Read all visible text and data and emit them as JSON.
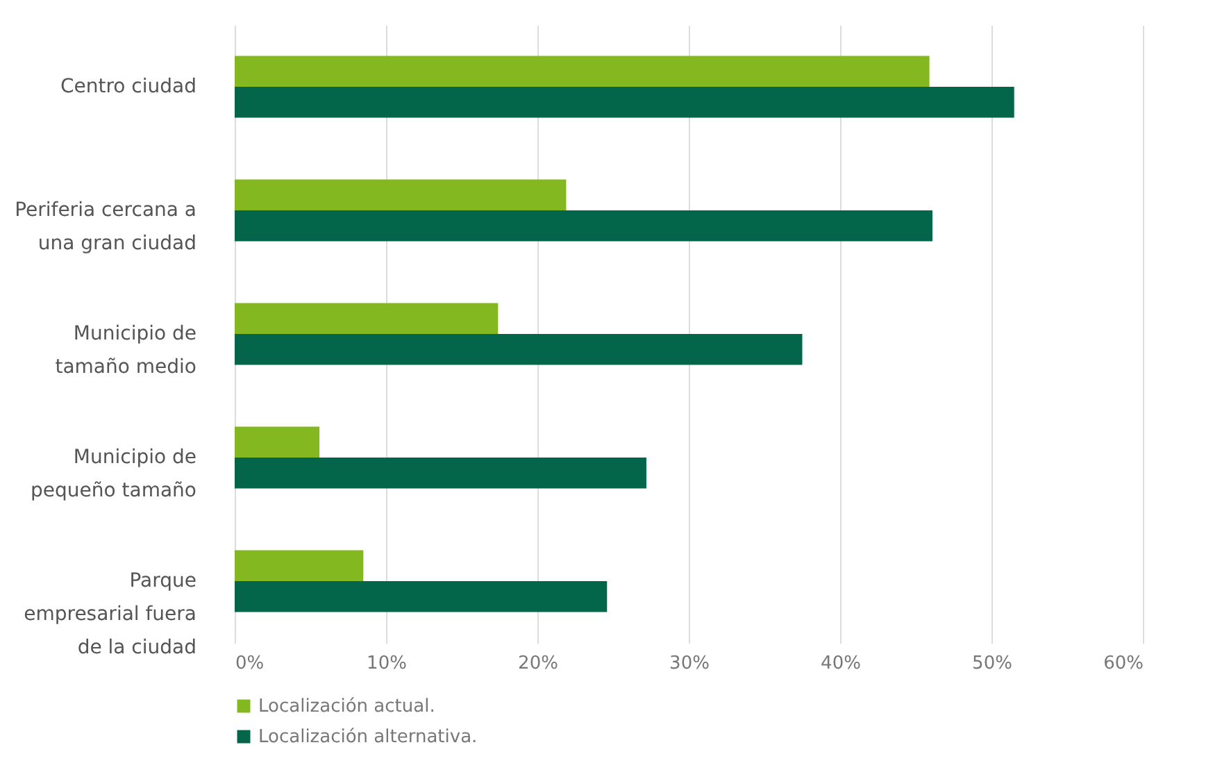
{
  "chart_data": {
    "type": "bar",
    "orientation": "horizontal",
    "categories": [
      "Centro ciudad",
      "Periferia cercana a\nuna gran ciudad",
      "Municipio de\ntamaño medio",
      "Municipio de\npequeño tamaño",
      "Parque\nempresarial fuera\nde la ciudad"
    ],
    "series": [
      {
        "name": "Localización actual.",
        "color": "#84b820",
        "values": [
          45.9,
          21.9,
          17.4,
          5.6,
          8.5
        ]
      },
      {
        "name": "Localización alternativa.",
        "color": "#03654a",
        "values": [
          51.5,
          46.1,
          37.5,
          27.2,
          24.6
        ]
      }
    ],
    "xlim": [
      0,
      60
    ],
    "xticks": [
      {
        "value": 0,
        "label": "0%"
      },
      {
        "value": 10,
        "label": "10%"
      },
      {
        "value": 20,
        "label": "20%"
      },
      {
        "value": 30,
        "label": "30%"
      },
      {
        "value": 40,
        "label": "40%"
      },
      {
        "value": 50,
        "label": "50%"
      },
      {
        "value": 60,
        "label": "60%"
      }
    ],
    "grid": "x",
    "legend": "bottom left"
  }
}
